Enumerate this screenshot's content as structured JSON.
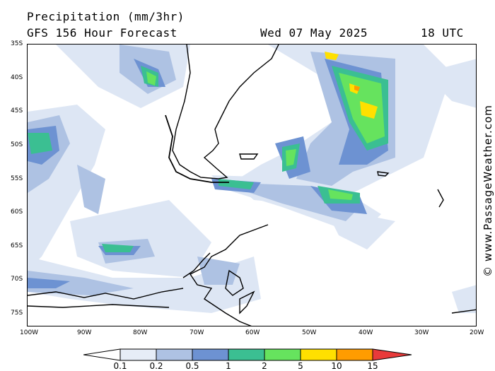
{
  "header": {
    "title": "Precipitation (mm/3hr)",
    "subtitle": "GFS 156 Hour Forecast",
    "date": "Wed 07 May 2025",
    "time": "18 UTC"
  },
  "credit": "© www.PassageWeather.com",
  "axes": {
    "lat_labels": [
      "35S",
      "40S",
      "45S",
      "50S",
      "55S",
      "60S",
      "65S",
      "70S",
      "75S"
    ],
    "lon_labels": [
      "100W",
      "90W",
      "80W",
      "70W",
      "60W",
      "50W",
      "40W",
      "30W",
      "20W"
    ]
  },
  "legend": {
    "unit": "mm/3hr",
    "labels": [
      "0.1",
      "0.2",
      "0.5",
      "1",
      "2",
      "5",
      "10",
      "15"
    ],
    "colors": [
      "#ffffff",
      "#e6edf7",
      "#aec2e3",
      "#6d92d2",
      "#3bbf92",
      "#66e35e",
      "#ffe000",
      "#ff9c00",
      "#e83a3a"
    ]
  },
  "colors": {
    "land_outline": "#000000",
    "background": "#ffffff"
  }
}
